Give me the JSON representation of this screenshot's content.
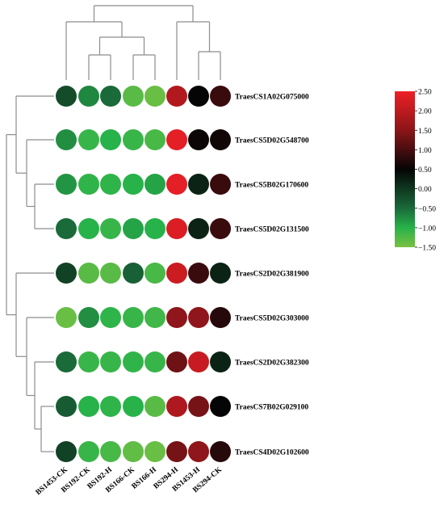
{
  "chart_data": {
    "type": "heatmap",
    "title": "",
    "columns": [
      "BS1453-CK",
      "BS192-CK",
      "BS192-H",
      "BS166-CK",
      "BS166-H",
      "BS294-H",
      "BS1453-H",
      "BS294-CK"
    ],
    "rows": [
      "TraesCS1A02G075000",
      "TraesCS5D02G548700",
      "TraesCS5B02G170600",
      "TraesCS5D02G131500",
      "TraesCS2D02G381900",
      "TraesCS5D02G303000",
      "TraesCS2D02G382300",
      "TraesCS7B02G029100",
      "TraesCS4D02G102600"
    ],
    "values": [
      [
        -0.2,
        -0.7,
        -0.5,
        -1.3,
        -1.4,
        1.9,
        0.5,
        0.9
      ],
      [
        -0.75,
        -1.1,
        -1.0,
        -1.1,
        -1.2,
        2.4,
        0.55,
        0.6
      ],
      [
        -0.8,
        -1.05,
        -1.05,
        -1.0,
        -0.9,
        2.4,
        0.2,
        0.9
      ],
      [
        -0.5,
        -1.0,
        -1.1,
        -0.9,
        -1.0,
        2.3,
        0.2,
        0.9
      ],
      [
        -0.1,
        -1.3,
        -1.3,
        -0.4,
        -1.2,
        2.15,
        0.9,
        0.2
      ],
      [
        -1.4,
        -0.75,
        -1.05,
        -1.1,
        -1.15,
        1.55,
        1.55,
        0.75
      ],
      [
        -0.5,
        -1.1,
        -1.1,
        -1.05,
        -1.1,
        1.3,
        2.1,
        0.2
      ],
      [
        -0.35,
        -1.0,
        -1.05,
        -1.0,
        -1.3,
        1.85,
        1.35,
        0.5
      ],
      [
        -0.1,
        -1.1,
        -1.2,
        -1.35,
        -1.4,
        1.35,
        1.55,
        0.75
      ]
    ],
    "colorbar": {
      "min": -1.5,
      "max": 2.5,
      "ticks": [
        2.5,
        2.0,
        1.5,
        1.0,
        0.5,
        0.0,
        -0.5,
        -1.0,
        -1.5
      ],
      "tick_labels": [
        "2.50",
        "2.00",
        "1.50",
        "1.00",
        "0.50",
        "0.00",
        "−0.50",
        "−1.00",
        "−1.50"
      ],
      "stops": [
        {
          "value": 2.5,
          "color": "#ee2026"
        },
        {
          "value": 1.5,
          "color": "#8a1519"
        },
        {
          "value": 0.5,
          "color": "#050505"
        },
        {
          "value": -0.5,
          "color": "#1a6a3a"
        },
        {
          "value": -1.0,
          "color": "#27b24a"
        },
        {
          "value": -1.5,
          "color": "#7ac143"
        }
      ]
    },
    "marker": "circle",
    "dendrograms": {
      "columns": true,
      "rows": true
    }
  }
}
